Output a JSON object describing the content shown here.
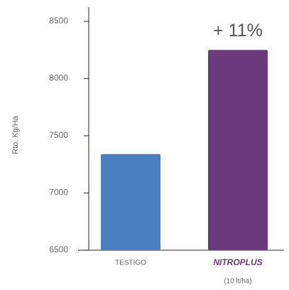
{
  "chart_data": {
    "type": "bar",
    "ylabel": "Rto. Kg/Ha",
    "annotation": "+ 11%",
    "categories": [
      "TESTIGO",
      "NITROPLUS"
    ],
    "category_sublabels": [
      null,
      "(10 lt/ha)"
    ],
    "values": [
      7340,
      8250
    ],
    "colors": [
      "#4a7fc1",
      "#6b3a7d"
    ],
    "ylim": [
      6500,
      8500
    ],
    "yticks": [
      6500,
      7000,
      7500,
      8000,
      8500
    ]
  }
}
